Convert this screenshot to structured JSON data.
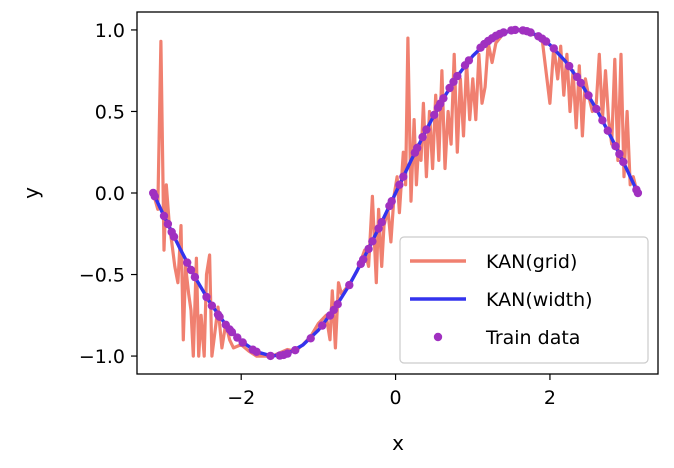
{
  "chart_data": {
    "type": "line",
    "xlabel": "x",
    "ylabel": "y",
    "xlim": [
      -3.35,
      3.4
    ],
    "ylim": [
      -1.11,
      1.11
    ],
    "xticks": [
      -2,
      0,
      2
    ],
    "xtick_labels": [
      "−2",
      "0",
      "2"
    ],
    "yticks": [
      -1.0,
      -0.5,
      0.0,
      0.5,
      1.0
    ],
    "ytick_labels": [
      "−1.0",
      "−0.5",
      "0.0",
      "0.5",
      "1.0"
    ],
    "grid": false,
    "legend_position": "lower-right",
    "series": [
      {
        "name": "KAN(grid)",
        "kind": "line",
        "color": "#f08070",
        "x": [
          -3.14,
          -3.08,
          -3.04,
          -3.0,
          -2.97,
          -2.93,
          -2.9,
          -2.86,
          -2.82,
          -2.78,
          -2.75,
          -2.72,
          -2.68,
          -2.65,
          -2.62,
          -2.58,
          -2.55,
          -2.52,
          -2.48,
          -2.45,
          -2.41,
          -2.38,
          -2.34,
          -2.3,
          -2.25,
          -2.2,
          -2.15,
          -2.1,
          -2.0,
          -1.9,
          -1.8,
          -1.7,
          -1.6,
          -1.5,
          -1.4,
          -1.3,
          -1.2,
          -1.1,
          -1.0,
          -0.9,
          -0.85,
          -0.82,
          -0.78,
          -0.74,
          -0.7,
          -0.6,
          -0.5,
          -0.4,
          -0.35,
          -0.3,
          -0.25,
          -0.22,
          -0.18,
          -0.15,
          -0.1,
          -0.06,
          -0.02,
          0.02,
          0.05,
          0.1,
          0.13,
          0.16,
          0.2,
          0.24,
          0.27,
          0.3,
          0.33,
          0.36,
          0.4,
          0.44,
          0.48,
          0.52,
          0.56,
          0.6,
          0.64,
          0.68,
          0.72,
          0.76,
          0.8,
          0.84,
          0.88,
          0.92,
          0.96,
          1.0,
          1.04,
          1.08,
          1.12,
          1.16,
          1.2,
          1.25,
          1.3,
          1.4,
          1.5,
          1.6,
          1.7,
          1.8,
          1.9,
          2.0,
          2.05,
          2.1,
          2.14,
          2.18,
          2.22,
          2.26,
          2.3,
          2.34,
          2.38,
          2.42,
          2.46,
          2.5,
          2.55,
          2.6,
          2.64,
          2.68,
          2.72,
          2.76,
          2.8,
          2.84,
          2.88,
          2.92,
          2.96,
          3.0,
          3.04,
          3.08,
          3.12
        ],
        "y": [
          0.0,
          -0.1,
          0.93,
          -0.35,
          0.05,
          -0.2,
          -0.3,
          -0.45,
          -0.55,
          -0.2,
          -0.9,
          -0.45,
          -0.62,
          -0.72,
          -1.0,
          -0.4,
          -1.0,
          -0.75,
          -1.0,
          -0.5,
          -0.38,
          -1.0,
          -0.85,
          -0.7,
          -0.95,
          -0.8,
          -0.9,
          -0.95,
          -0.93,
          -0.97,
          -1.0,
          -1.0,
          -1.0,
          -0.98,
          -0.96,
          -0.97,
          -0.93,
          -0.88,
          -0.8,
          -0.75,
          -0.9,
          -0.6,
          -0.95,
          -0.55,
          -0.62,
          -0.56,
          -0.48,
          -0.35,
          -0.45,
          -0.02,
          -0.55,
          -0.1,
          -0.45,
          -0.2,
          -0.1,
          -0.3,
          -0.02,
          0.1,
          -0.12,
          0.25,
          0.05,
          0.95,
          -0.05,
          0.45,
          0.05,
          0.3,
          0.2,
          0.55,
          0.1,
          0.5,
          0.15,
          0.6,
          0.2,
          0.75,
          0.15,
          0.5,
          0.3,
          0.85,
          0.25,
          0.7,
          0.35,
          0.8,
          0.45,
          0.7,
          0.45,
          0.85,
          0.55,
          0.65,
          0.92,
          0.8,
          0.92,
          0.98,
          1.0,
          1.0,
          0.99,
          0.97,
          0.94,
          0.55,
          0.9,
          0.7,
          0.9,
          0.6,
          0.85,
          0.5,
          0.75,
          0.4,
          0.78,
          0.35,
          0.7,
          0.6,
          0.5,
          0.55,
          0.85,
          0.45,
          0.75,
          0.45,
          0.3,
          0.82,
          0.2,
          0.85,
          0.1,
          0.5,
          0.05,
          0.1,
          0.02
        ]
      },
      {
        "name": "KAN(width)",
        "kind": "line",
        "color": "#3333ee",
        "x": [
          -3.14,
          -3.0,
          -2.8,
          -2.6,
          -2.4,
          -2.2,
          -2.0,
          -1.8,
          -1.6,
          -1.4,
          -1.2,
          -1.0,
          -0.8,
          -0.6,
          -0.4,
          -0.2,
          0.0,
          0.2,
          0.4,
          0.6,
          0.8,
          1.0,
          1.2,
          1.4,
          1.6,
          1.8,
          2.0,
          2.2,
          2.4,
          2.6,
          2.8,
          3.0,
          3.14
        ],
        "y": [
          0.0,
          -0.141,
          -0.335,
          -0.516,
          -0.675,
          -0.808,
          -0.909,
          -0.974,
          -1.0,
          -0.985,
          -0.932,
          -0.841,
          -0.717,
          -0.565,
          -0.389,
          -0.199,
          0.0,
          0.199,
          0.389,
          0.565,
          0.717,
          0.841,
          0.932,
          0.985,
          1.0,
          0.974,
          0.909,
          0.808,
          0.675,
          0.516,
          0.335,
          0.141,
          0.0
        ]
      },
      {
        "name": "Train data",
        "kind": "scatter",
        "color": "#a030c0",
        "x": [
          -3.14,
          -3.12,
          -3.0,
          -2.95,
          -2.9,
          -2.87,
          -2.7,
          -2.65,
          -2.6,
          -2.45,
          -2.38,
          -2.3,
          -2.28,
          -2.2,
          -2.15,
          -2.12,
          -2.05,
          -1.98,
          -1.85,
          -1.8,
          -1.62,
          -1.5,
          -1.45,
          -1.4,
          -1.3,
          -1.1,
          -0.95,
          -0.85,
          -0.8,
          -0.75,
          -0.6,
          -0.45,
          -0.42,
          -0.35,
          -0.3,
          -0.22,
          -0.18,
          -0.08,
          -0.05,
          0.05,
          0.1,
          0.25,
          0.28,
          0.35,
          0.4,
          0.5,
          0.55,
          0.58,
          0.62,
          0.7,
          0.75,
          0.8,
          0.9,
          0.95,
          1.1,
          1.15,
          1.2,
          1.25,
          1.3,
          1.35,
          1.4,
          1.5,
          1.55,
          1.65,
          1.7,
          1.75,
          1.85,
          1.9,
          1.95,
          2.05,
          2.25,
          2.35,
          2.4,
          2.5,
          2.6,
          2.68,
          2.75,
          2.85,
          2.9,
          2.95,
          3.12,
          3.14
        ],
        "y": [
          0.0,
          -0.02,
          -0.141,
          -0.19,
          -0.239,
          -0.268,
          -0.427,
          -0.472,
          -0.516,
          -0.638,
          -0.691,
          -0.746,
          -0.759,
          -0.808,
          -0.837,
          -0.853,
          -0.887,
          -0.917,
          -0.961,
          -0.974,
          -0.999,
          -0.997,
          -0.993,
          -0.985,
          -0.964,
          -0.891,
          -0.813,
          -0.751,
          -0.717,
          -0.682,
          -0.565,
          -0.435,
          -0.408,
          -0.343,
          -0.296,
          -0.218,
          -0.179,
          -0.08,
          -0.05,
          0.05,
          0.1,
          0.247,
          0.276,
          0.343,
          0.389,
          0.479,
          0.523,
          0.548,
          0.581,
          0.644,
          0.682,
          0.717,
          0.783,
          0.813,
          0.891,
          0.913,
          0.932,
          0.949,
          0.964,
          0.976,
          0.985,
          0.997,
          1.0,
          0.997,
          0.992,
          0.984,
          0.961,
          0.946,
          0.929,
          0.887,
          0.778,
          0.712,
          0.675,
          0.598,
          0.516,
          0.446,
          0.382,
          0.287,
          0.239,
          0.19,
          0.02,
          0.0
        ]
      }
    ]
  }
}
